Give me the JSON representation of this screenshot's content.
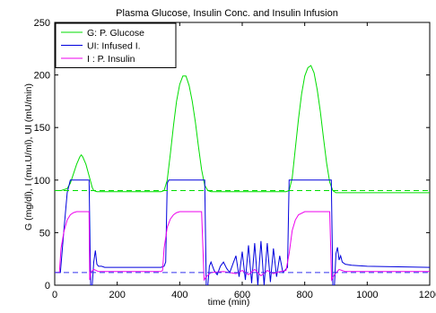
{
  "chart_data": {
    "type": "line",
    "title": "Plasma Glucose, Insulin Conc. and Insulin Infusion",
    "xlabel": "time (min)",
    "ylabel": "G (mg/dl), I (mu.U/ml), UI (mU/min)",
    "xlim": [
      0,
      1200
    ],
    "ylim": [
      0,
      250
    ],
    "xticks": [
      0,
      200,
      400,
      600,
      800,
      1000,
      1200
    ],
    "yticks": [
      0,
      50,
      100,
      150,
      200,
      250
    ],
    "grid": false,
    "legend_position": "top-left",
    "series": [
      {
        "name": "G: P. Glucose",
        "color": "#00dd00",
        "style": "solid",
        "points": [
          [
            0,
            90
          ],
          [
            20,
            90
          ],
          [
            40,
            92
          ],
          [
            50,
            97
          ],
          [
            60,
            106
          ],
          [
            70,
            115
          ],
          [
            80,
            122
          ],
          [
            85,
            124
          ],
          [
            90,
            122
          ],
          [
            100,
            115
          ],
          [
            110,
            104
          ],
          [
            120,
            93
          ],
          [
            125,
            90
          ],
          [
            135,
            89
          ],
          [
            200,
            89
          ],
          [
            340,
            89
          ],
          [
            350,
            90
          ],
          [
            360,
            100
          ],
          [
            370,
            125
          ],
          [
            380,
            152
          ],
          [
            390,
            175
          ],
          [
            400,
            191
          ],
          [
            410,
            199
          ],
          [
            420,
            199
          ],
          [
            430,
            190
          ],
          [
            440,
            175
          ],
          [
            450,
            155
          ],
          [
            460,
            132
          ],
          [
            470,
            110
          ],
          [
            480,
            95
          ],
          [
            490,
            90
          ],
          [
            500,
            89
          ],
          [
            740,
            89
          ],
          [
            750,
            90
          ],
          [
            760,
            102
          ],
          [
            770,
            130
          ],
          [
            780,
            158
          ],
          [
            790,
            182
          ],
          [
            800,
            199
          ],
          [
            810,
            207
          ],
          [
            820,
            209
          ],
          [
            830,
            202
          ],
          [
            840,
            186
          ],
          [
            850,
            165
          ],
          [
            860,
            140
          ],
          [
            870,
            116
          ],
          [
            880,
            98
          ],
          [
            890,
            90
          ],
          [
            900,
            88
          ],
          [
            1200,
            88
          ]
        ]
      },
      {
        "name": "UI: Infused I.",
        "color": "#0000dd",
        "style": "solid",
        "points": [
          [
            0,
            12
          ],
          [
            18,
            12
          ],
          [
            30,
            55
          ],
          [
            40,
            88
          ],
          [
            50,
            100
          ],
          [
            110,
            100
          ],
          [
            115,
            0
          ],
          [
            120,
            0
          ],
          [
            125,
            22
          ],
          [
            130,
            33
          ],
          [
            135,
            20
          ],
          [
            140,
            18
          ],
          [
            150,
            18
          ],
          [
            160,
            17
          ],
          [
            200,
            17
          ],
          [
            340,
            17
          ],
          [
            350,
            18
          ],
          [
            355,
            22
          ],
          [
            360,
            97
          ],
          [
            365,
            100
          ],
          [
            480,
            100
          ],
          [
            485,
            0
          ],
          [
            490,
            0
          ],
          [
            495,
            18
          ],
          [
            500,
            22
          ],
          [
            510,
            14
          ],
          [
            520,
            10
          ],
          [
            530,
            18
          ],
          [
            540,
            22
          ],
          [
            550,
            16
          ],
          [
            560,
            12
          ],
          [
            570,
            20
          ],
          [
            580,
            28
          ],
          [
            590,
            8
          ],
          [
            600,
            32
          ],
          [
            610,
            5
          ],
          [
            620,
            38
          ],
          [
            630,
            2
          ],
          [
            640,
            40
          ],
          [
            650,
            0
          ],
          [
            660,
            42
          ],
          [
            670,
            0
          ],
          [
            680,
            40
          ],
          [
            690,
            3
          ],
          [
            700,
            35
          ],
          [
            710,
            8
          ],
          [
            720,
            28
          ],
          [
            730,
            12
          ],
          [
            745,
            17
          ],
          [
            750,
            100
          ],
          [
            885,
            100
          ],
          [
            890,
            0
          ],
          [
            895,
            0
          ],
          [
            900,
            30
          ],
          [
            905,
            36
          ],
          [
            910,
            24
          ],
          [
            915,
            28
          ],
          [
            920,
            22
          ],
          [
            930,
            20
          ],
          [
            950,
            19
          ],
          [
            1000,
            18
          ],
          [
            1200,
            17
          ]
        ]
      },
      {
        "name": "I : P. Insulin",
        "color": "#ee00ee",
        "style": "solid",
        "points": [
          [
            0,
            12
          ],
          [
            15,
            12
          ],
          [
            20,
            35
          ],
          [
            30,
            52
          ],
          [
            40,
            62
          ],
          [
            50,
            67
          ],
          [
            60,
            69
          ],
          [
            70,
            70
          ],
          [
            110,
            70
          ],
          [
            112,
            5
          ],
          [
            115,
            12
          ],
          [
            125,
            15
          ],
          [
            140,
            13
          ],
          [
            200,
            13
          ],
          [
            340,
            13
          ],
          [
            345,
            14
          ],
          [
            350,
            35
          ],
          [
            360,
            55
          ],
          [
            370,
            63
          ],
          [
            380,
            67
          ],
          [
            390,
            69
          ],
          [
            400,
            70
          ],
          [
            470,
            70
          ],
          [
            478,
            5
          ],
          [
            485,
            8
          ],
          [
            500,
            12
          ],
          [
            540,
            13
          ],
          [
            560,
            12
          ],
          [
            580,
            11
          ],
          [
            600,
            14
          ],
          [
            620,
            10
          ],
          [
            640,
            15
          ],
          [
            660,
            9
          ],
          [
            680,
            14
          ],
          [
            700,
            11
          ],
          [
            720,
            13
          ],
          [
            740,
            14
          ],
          [
            750,
            30
          ],
          [
            760,
            52
          ],
          [
            770,
            62
          ],
          [
            780,
            67
          ],
          [
            800,
            70
          ],
          [
            880,
            70
          ],
          [
            886,
            5
          ],
          [
            895,
            10
          ],
          [
            910,
            15
          ],
          [
            930,
            13
          ],
          [
            1000,
            13
          ],
          [
            1200,
            13
          ]
        ]
      },
      {
        "name": "",
        "color": "#00dd00",
        "style": "dashed",
        "points": [
          [
            0,
            90
          ],
          [
            1200,
            90
          ]
        ]
      },
      {
        "name": "",
        "color": "#3333ee",
        "style": "dashed",
        "points": [
          [
            0,
            12
          ],
          [
            1200,
            12
          ]
        ]
      }
    ]
  }
}
